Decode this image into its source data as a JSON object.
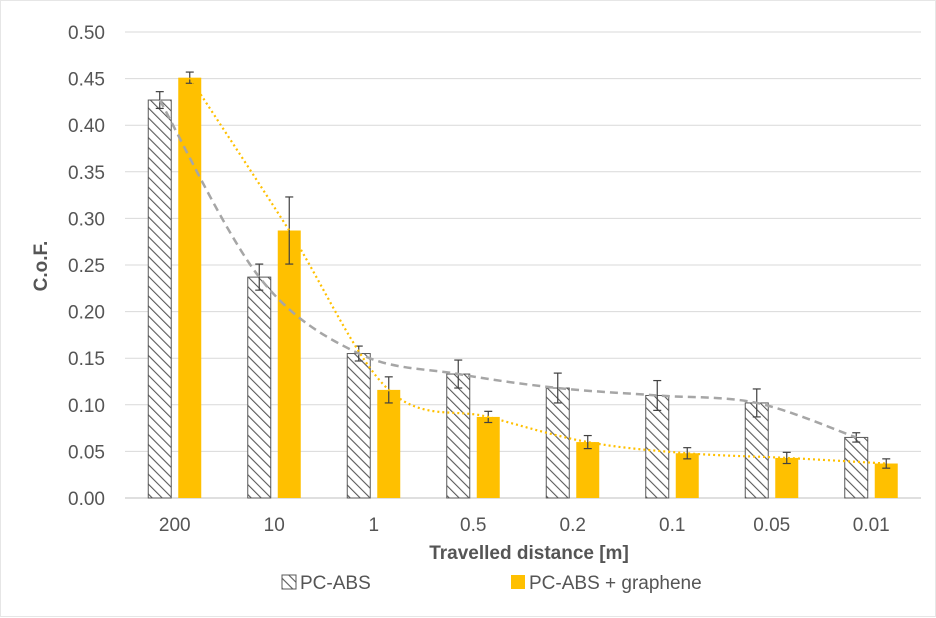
{
  "chart_data": {
    "type": "bar",
    "title": "",
    "xlabel": "Travelled distance [m]",
    "ylabel": "C.o.F.",
    "ylim": [
      0,
      0.5
    ],
    "yticks": [
      "0.00",
      "0.05",
      "0.10",
      "0.15",
      "0.20",
      "0.25",
      "0.30",
      "0.35",
      "0.40",
      "0.45",
      "0.50"
    ],
    "categories": [
      "200",
      "10",
      "1",
      "0.5",
      "0.2",
      "0.1",
      "0.05",
      "0.01"
    ],
    "grid": true,
    "legend_position": "bottom",
    "series": [
      {
        "name": "PC-ABS",
        "values": [
          0.427,
          0.237,
          0.155,
          0.133,
          0.118,
          0.11,
          0.102,
          0.065
        ],
        "errors": [
          0.009,
          0.014,
          0.008,
          0.015,
          0.016,
          0.016,
          0.015,
          0.005
        ],
        "color": "#595959",
        "pattern": "hatched",
        "trendline": "dashed",
        "trend_color": "#a6a6a6"
      },
      {
        "name": "PC-ABS + graphene",
        "values": [
          0.451,
          0.287,
          0.116,
          0.087,
          0.06,
          0.048,
          0.043,
          0.037
        ],
        "errors": [
          0.006,
          0.036,
          0.014,
          0.006,
          0.007,
          0.006,
          0.006,
          0.005
        ],
        "color": "#ffc000",
        "pattern": "solid",
        "trendline": "dotted",
        "trend_color": "#ffc000"
      }
    ]
  }
}
